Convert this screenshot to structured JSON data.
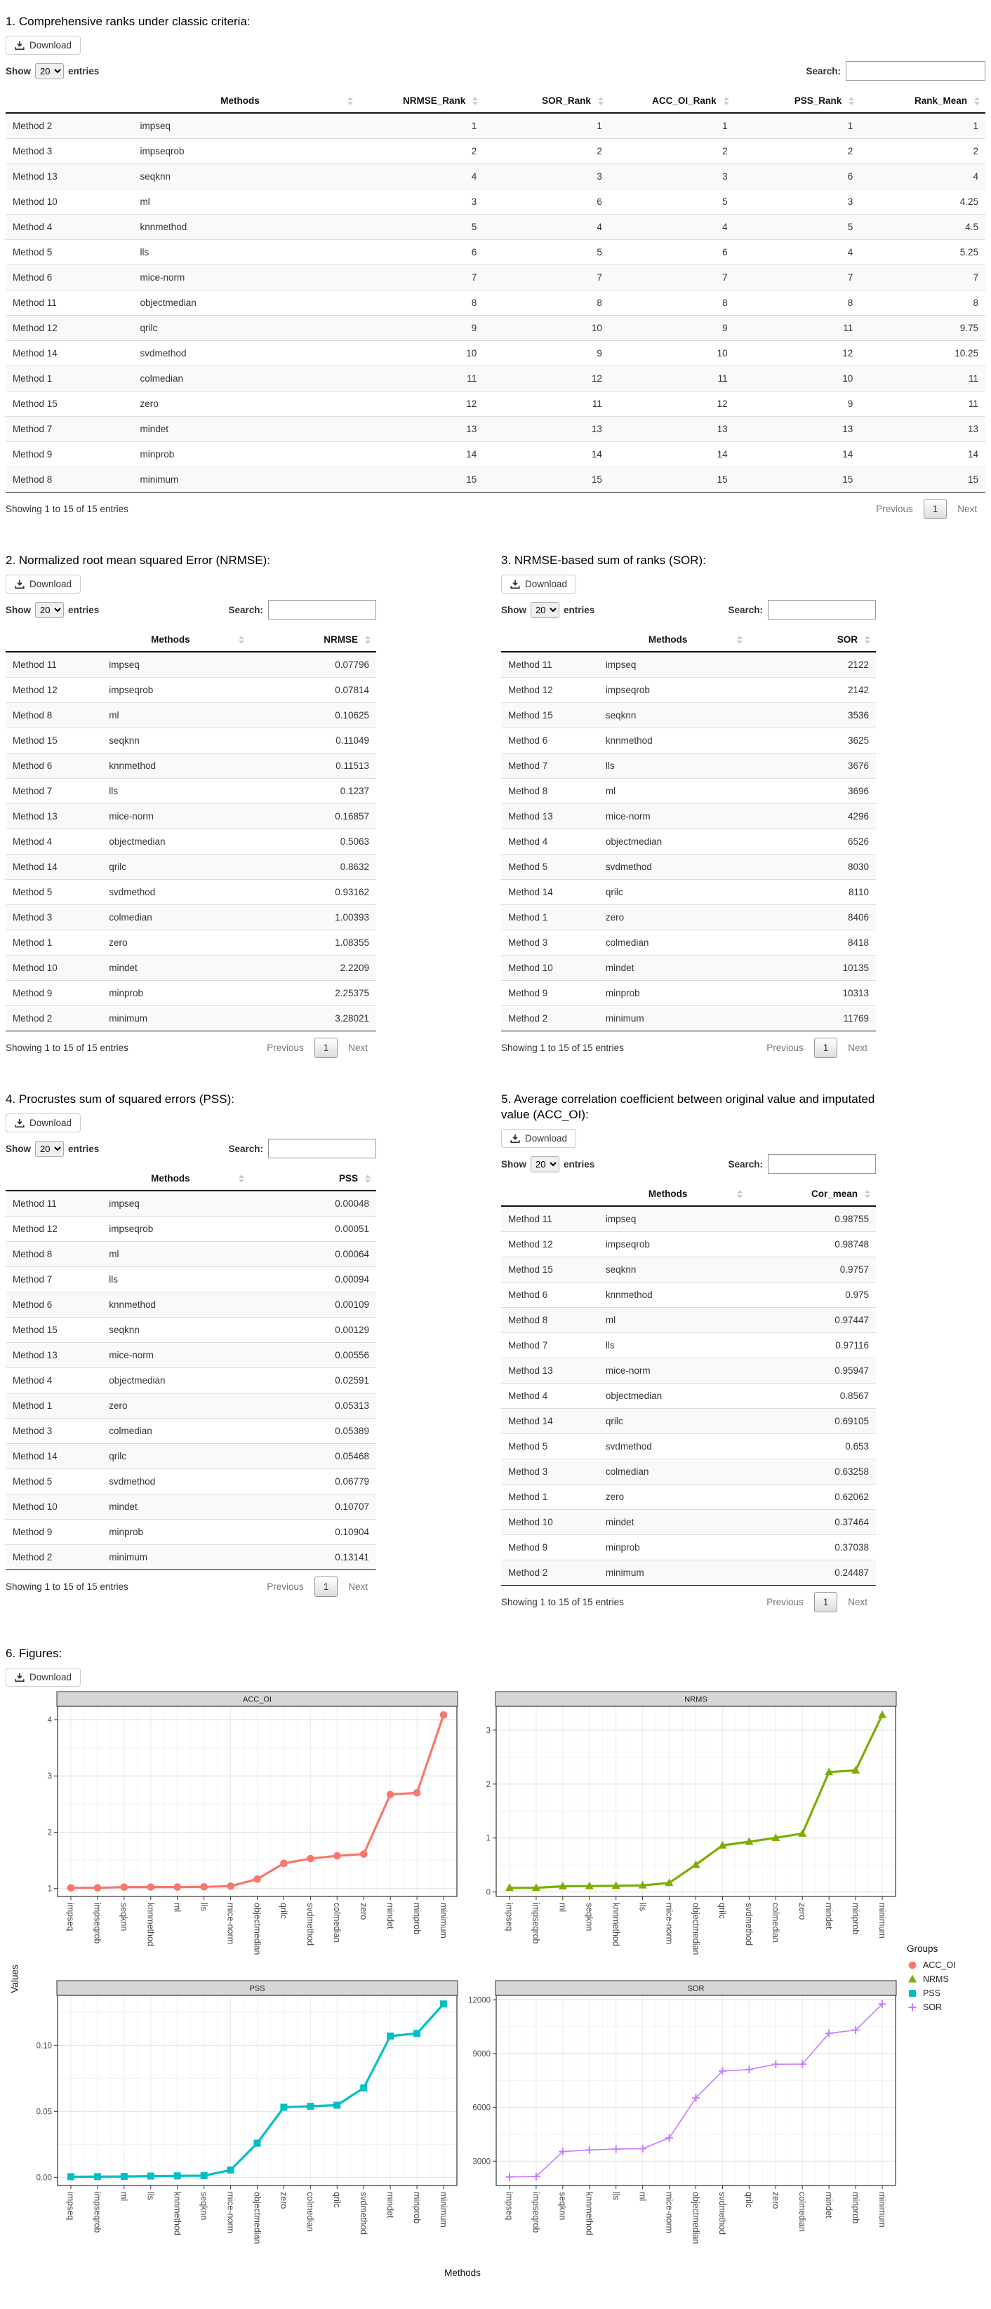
{
  "common": {
    "download_label": "Download",
    "show_label": "Show",
    "page_size": "20",
    "entries_label": "entries",
    "search_label": "Search:",
    "info": "Showing 1 to 15 of 15 entries",
    "previous_label": "Previous",
    "page_number": "1",
    "next_label": "Next"
  },
  "sections": [
    {
      "name": "section-ranks",
      "layout": "full",
      "title": "1. Comprehensive ranks under classic criteria:",
      "columns": [
        "Methods",
        "NRMSE_Rank",
        "SOR_Rank",
        "ACC_OI_Rank",
        "PSS_Rank",
        "Rank_Mean"
      ],
      "rows": [
        [
          "Method 2",
          "impseq",
          "1",
          "1",
          "1",
          "1",
          "1"
        ],
        [
          "Method 3",
          "impseqrob",
          "2",
          "2",
          "2",
          "2",
          "2"
        ],
        [
          "Method 13",
          "seqknn",
          "4",
          "3",
          "3",
          "6",
          "4"
        ],
        [
          "Method 10",
          "ml",
          "3",
          "6",
          "5",
          "3",
          "4.25"
        ],
        [
          "Method 4",
          "knnmethod",
          "5",
          "4",
          "4",
          "5",
          "4.5"
        ],
        [
          "Method 5",
          "lls",
          "6",
          "5",
          "6",
          "4",
          "5.25"
        ],
        [
          "Method 6",
          "mice-norm",
          "7",
          "7",
          "7",
          "7",
          "7"
        ],
        [
          "Method 11",
          "objectmedian",
          "8",
          "8",
          "8",
          "8",
          "8"
        ],
        [
          "Method 12",
          "qrilc",
          "9",
          "10",
          "9",
          "11",
          "9.75"
        ],
        [
          "Method 14",
          "svdmethod",
          "10",
          "9",
          "10",
          "12",
          "10.25"
        ],
        [
          "Method 1",
          "colmedian",
          "11",
          "12",
          "11",
          "10",
          "11"
        ],
        [
          "Method 15",
          "zero",
          "12",
          "11",
          "12",
          "9",
          "11"
        ],
        [
          "Method 7",
          "mindet",
          "13",
          "13",
          "13",
          "13",
          "13"
        ],
        [
          "Method 9",
          "minprob",
          "14",
          "14",
          "14",
          "14",
          "14"
        ],
        [
          "Method 8",
          "minimum",
          "15",
          "15",
          "15",
          "15",
          "15"
        ]
      ]
    },
    {
      "name": "section-nrmse",
      "layout": "half",
      "title": "2. Normalized root mean squared Error (NRMSE):",
      "columns": [
        "Methods",
        "NRMSE"
      ],
      "rows": [
        [
          "Method 11",
          "impseq",
          "0.07796"
        ],
        [
          "Method 12",
          "impseqrob",
          "0.07814"
        ],
        [
          "Method 8",
          "ml",
          "0.10625"
        ],
        [
          "Method 15",
          "seqknn",
          "0.11049"
        ],
        [
          "Method 6",
          "knnmethod",
          "0.11513"
        ],
        [
          "Method 7",
          "lls",
          "0.1237"
        ],
        [
          "Method 13",
          "mice-norm",
          "0.16857"
        ],
        [
          "Method 4",
          "objectmedian",
          "0.5063"
        ],
        [
          "Method 14",
          "qrilc",
          "0.8632"
        ],
        [
          "Method 5",
          "svdmethod",
          "0.93162"
        ],
        [
          "Method 3",
          "colmedian",
          "1.00393"
        ],
        [
          "Method 1",
          "zero",
          "1.08355"
        ],
        [
          "Method 10",
          "mindet",
          "2.2209"
        ],
        [
          "Method 9",
          "minprob",
          "2.25375"
        ],
        [
          "Method 2",
          "minimum",
          "3.28021"
        ]
      ]
    },
    {
      "name": "section-sor",
      "layout": "half",
      "title": "3. NRMSE-based sum of ranks (SOR):",
      "columns": [
        "Methods",
        "SOR"
      ],
      "rows": [
        [
          "Method 11",
          "impseq",
          "2122"
        ],
        [
          "Method 12",
          "impseqrob",
          "2142"
        ],
        [
          "Method 15",
          "seqknn",
          "3536"
        ],
        [
          "Method 6",
          "knnmethod",
          "3625"
        ],
        [
          "Method 7",
          "lls",
          "3676"
        ],
        [
          "Method 8",
          "ml",
          "3696"
        ],
        [
          "Method 13",
          "mice-norm",
          "4296"
        ],
        [
          "Method 4",
          "objectmedian",
          "6526"
        ],
        [
          "Method 5",
          "svdmethod",
          "8030"
        ],
        [
          "Method 14",
          "qrilc",
          "8110"
        ],
        [
          "Method 1",
          "zero",
          "8406"
        ],
        [
          "Method 3",
          "colmedian",
          "8418"
        ],
        [
          "Method 10",
          "mindet",
          "10135"
        ],
        [
          "Method 9",
          "minprob",
          "10313"
        ],
        [
          "Method 2",
          "minimum",
          "11769"
        ]
      ]
    },
    {
      "name": "section-pss",
      "layout": "half",
      "title": "4. Procrustes sum of squared errors (PSS):",
      "columns": [
        "Methods",
        "PSS"
      ],
      "rows": [
        [
          "Method 11",
          "impseq",
          "0.00048"
        ],
        [
          "Method 12",
          "impseqrob",
          "0.00051"
        ],
        [
          "Method 8",
          "ml",
          "0.00064"
        ],
        [
          "Method 7",
          "lls",
          "0.00094"
        ],
        [
          "Method 6",
          "knnmethod",
          "0.00109"
        ],
        [
          "Method 15",
          "seqknn",
          "0.00129"
        ],
        [
          "Method 13",
          "mice-norm",
          "0.00556"
        ],
        [
          "Method 4",
          "objectmedian",
          "0.02591"
        ],
        [
          "Method 1",
          "zero",
          "0.05313"
        ],
        [
          "Method 3",
          "colmedian",
          "0.05389"
        ],
        [
          "Method 14",
          "qrilc",
          "0.05468"
        ],
        [
          "Method 5",
          "svdmethod",
          "0.06779"
        ],
        [
          "Method 10",
          "mindet",
          "0.10707"
        ],
        [
          "Method 9",
          "minprob",
          "0.10904"
        ],
        [
          "Method 2",
          "minimum",
          "0.13141"
        ]
      ]
    },
    {
      "name": "section-accoi",
      "layout": "half",
      "title": "5. Average correlation coefficient between original value and imputated value (ACC_OI):",
      "columns": [
        "Methods",
        "Cor_mean"
      ],
      "rows": [
        [
          "Method 11",
          "impseq",
          "0.98755"
        ],
        [
          "Method 12",
          "impseqrob",
          "0.98748"
        ],
        [
          "Method 15",
          "seqknn",
          "0.9757"
        ],
        [
          "Method 6",
          "knnmethod",
          "0.975"
        ],
        [
          "Method 8",
          "ml",
          "0.97447"
        ],
        [
          "Method 7",
          "lls",
          "0.97116"
        ],
        [
          "Method 13",
          "mice-norm",
          "0.95947"
        ],
        [
          "Method 4",
          "objectmedian",
          "0.8567"
        ],
        [
          "Method 14",
          "qrilc",
          "0.69105"
        ],
        [
          "Method 5",
          "svdmethod",
          "0.653"
        ],
        [
          "Method 3",
          "colmedian",
          "0.63258"
        ],
        [
          "Method 1",
          "zero",
          "0.62062"
        ],
        [
          "Method 10",
          "mindet",
          "0.37464"
        ],
        [
          "Method 9",
          "minprob",
          "0.37038"
        ],
        [
          "Method 2",
          "minimum",
          "0.24487"
        ]
      ]
    }
  ],
  "figures": {
    "title": "6. Figures:",
    "ylabel": "Values",
    "xlabel": "Methods",
    "legend": {
      "title": "Groups",
      "items": [
        {
          "label": "ACC_OI",
          "color": "#F8766D",
          "shape": "circle"
        },
        {
          "label": "NRMS",
          "color": "#7CAE00",
          "shape": "triangle"
        },
        {
          "label": "PSS",
          "color": "#00BFC4",
          "shape": "square"
        },
        {
          "label": "SOR",
          "color": "#C77CFF",
          "shape": "plus"
        }
      ]
    }
  },
  "chart_data": [
    {
      "type": "line",
      "title": "ACC_OI",
      "color": "#F8766D",
      "shape": "circle",
      "line_width": 3.2,
      "categories": [
        "impseq",
        "impseqrob",
        "seqknn",
        "knnmethod",
        "ml",
        "lls",
        "mice-norm",
        "objectmedian",
        "qrilc",
        "svdmethod",
        "colmedian",
        "zero",
        "mindet",
        "minprob",
        "minimum"
      ],
      "values": [
        1.0126,
        1.0127,
        1.0249,
        1.0256,
        1.0262,
        1.0297,
        1.0422,
        1.1673,
        1.4471,
        1.5314,
        1.5808,
        1.6113,
        2.6692,
        2.7,
        4.0838
      ],
      "yticks": [
        1,
        2,
        3,
        4
      ],
      "ytick_labels": [
        "1",
        "2",
        "3",
        "4"
      ],
      "ylim": [
        0.859,
        4.237
      ],
      "grid": true,
      "legend_position": "right"
    },
    {
      "type": "line",
      "title": "NRMS",
      "color": "#7CAE00",
      "shape": "triangle",
      "line_width": 3.2,
      "categories": [
        "impseq",
        "impseqrob",
        "ml",
        "seqknn",
        "knnmethod",
        "lls",
        "mice-norm",
        "objectmedian",
        "qrilc",
        "svdmethod",
        "colmedian",
        "zero",
        "mindet",
        "minprob",
        "minimum"
      ],
      "values": [
        0.07796,
        0.07814,
        0.10625,
        0.11049,
        0.11513,
        0.1237,
        0.16857,
        0.5063,
        0.8632,
        0.93162,
        1.00393,
        1.08355,
        2.2209,
        2.25375,
        3.28021
      ],
      "yticks": [
        0,
        1,
        2,
        3
      ],
      "ytick_labels": [
        "0",
        "1",
        "2",
        "3"
      ],
      "ylim": [
        -0.082,
        3.44
      ],
      "grid": true,
      "legend_position": "right"
    },
    {
      "type": "line",
      "title": "PSS",
      "color": "#00BFC4",
      "shape": "square",
      "line_width": 3.2,
      "categories": [
        "impseq",
        "impseqrob",
        "ml",
        "lls",
        "knnmethod",
        "seqknn",
        "mice-norm",
        "objectmedian",
        "zero",
        "colmedian",
        "qrilc",
        "svdmethod",
        "mindet",
        "minprob",
        "minimum"
      ],
      "values": [
        0.00048,
        0.00051,
        0.00064,
        0.00094,
        0.00109,
        0.00129,
        0.00556,
        0.02591,
        0.05313,
        0.05389,
        0.05468,
        0.06779,
        0.10707,
        0.10904,
        0.13141
      ],
      "yticks": [
        0,
        0.05,
        0.1
      ],
      "ytick_labels": [
        "0.00",
        "0.05",
        "0.10"
      ],
      "ylim": [
        -0.0062,
        0.1379
      ],
      "grid": true,
      "legend_position": "right"
    },
    {
      "type": "line",
      "title": "SOR",
      "color": "#C77CFF",
      "shape": "plus",
      "line_width": 1.6,
      "categories": [
        "impseq",
        "impseqrob",
        "seqknn",
        "knnmethod",
        "lls",
        "ml",
        "mice-norm",
        "objectmedian",
        "svdmethod",
        "qrilc",
        "zero",
        "colmedian",
        "mindet",
        "minprob",
        "minimum"
      ],
      "values": [
        2122,
        2142,
        3536,
        3625,
        3676,
        3696,
        4296,
        6526,
        8030,
        8110,
        8406,
        8418,
        10135,
        10313,
        11769
      ],
      "yticks": [
        3000,
        6000,
        9000,
        12000
      ],
      "ytick_labels": [
        "3000",
        "6000",
        "9000",
        "12000"
      ],
      "ylim": [
        1640,
        12251
      ],
      "grid": true,
      "legend_position": "right"
    }
  ]
}
